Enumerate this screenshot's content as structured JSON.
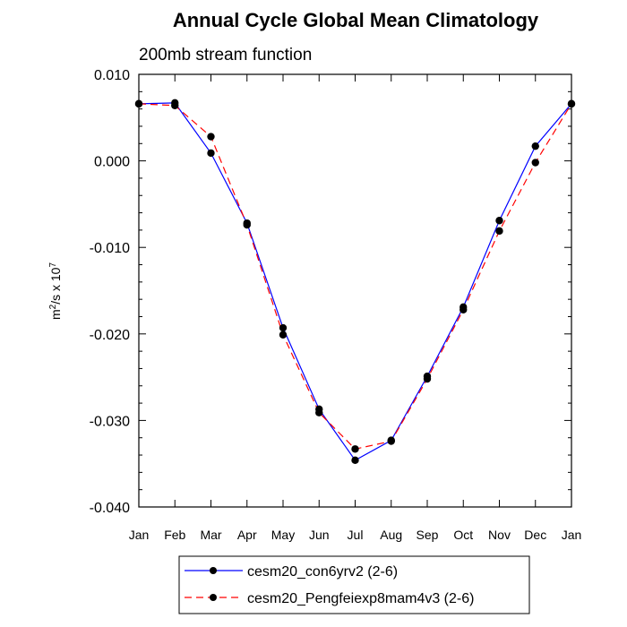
{
  "chart_data": {
    "type": "line",
    "title": "Annual Cycle Global Mean Climatology",
    "subtitle": "200mb stream function",
    "xlabel": "",
    "ylabel_base": "m",
    "ylabel_sup1": "2",
    "ylabel_mid": "/s x 10",
    "ylabel_sup2": "7",
    "categories": [
      "Jan",
      "Feb",
      "Mar",
      "Apr",
      "May",
      "Jun",
      "Jul",
      "Aug",
      "Sep",
      "Oct",
      "Nov",
      "Dec",
      "Jan"
    ],
    "ylim": [
      -0.04,
      0.01
    ],
    "yticks_major": [
      -0.04,
      -0.03,
      -0.02,
      -0.01,
      0.0,
      0.01
    ],
    "ytick_labels": [
      "-0.040",
      "-0.030",
      "-0.020",
      "-0.010",
      "0.000",
      "0.010"
    ],
    "grid": false,
    "legend_position": "bottom-center",
    "series": [
      {
        "name": "cesm20_con6yrv2 (2-6)",
        "color": "#0000ff",
        "dash": "solid",
        "values": [
          0.0066,
          0.0067,
          0.0009,
          -0.0072,
          -0.0193,
          -0.0287,
          -0.0346,
          -0.0323,
          -0.0249,
          -0.0169,
          -0.0069,
          0.0017,
          0.0066
        ]
      },
      {
        "name": "cesm20_Pengfeiexp8mam4v3 (2-6)",
        "color": "#ff0000",
        "dash": "dashed",
        "values": [
          0.0066,
          0.0064,
          0.0028,
          -0.0074,
          -0.0201,
          -0.0291,
          -0.0333,
          -0.0324,
          -0.0252,
          -0.0172,
          -0.0081,
          -0.0002,
          0.0066
        ]
      }
    ],
    "marker_color": "#000000"
  }
}
